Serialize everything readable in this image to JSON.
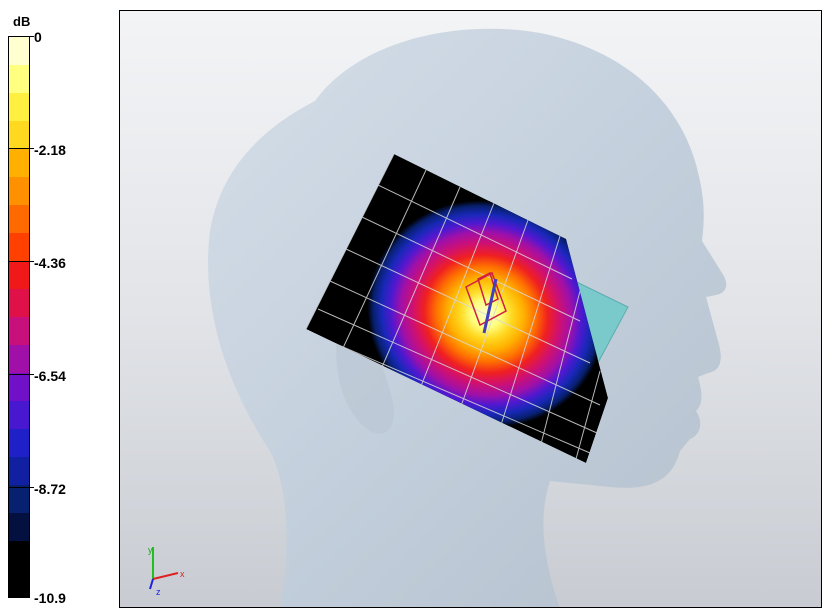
{
  "colorbar": {
    "unit": "dB",
    "ticks": [
      "0",
      "-2.18",
      "-4.36",
      "-6.54",
      "-8.72",
      "-10.9"
    ],
    "bands": [
      "#ffffd0",
      "#ffff80",
      "#ffef40",
      "#ffd820",
      "#ffb000",
      "#ff9000",
      "#ff6a00",
      "#ff4000",
      "#f01818",
      "#e01048",
      "#c8107c",
      "#a010a8",
      "#7010c8",
      "#4818d0",
      "#2020c8",
      "#1020a0",
      "#082070",
      "#041040",
      "#000000",
      "#000000"
    ]
  },
  "viewport": {
    "axes_icon": "xyz-axes-icon",
    "axes": {
      "x": "x",
      "y": "y",
      "z": "z"
    }
  }
}
